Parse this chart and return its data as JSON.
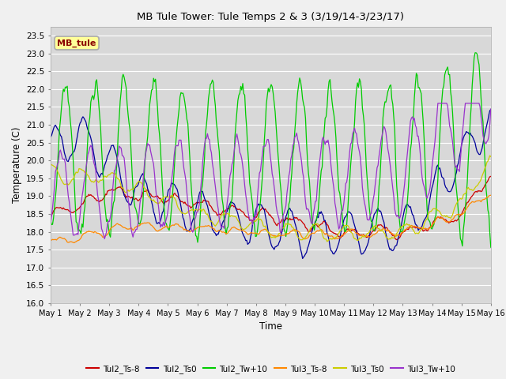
{
  "title": "MB Tule Tower: Tule Temps 2 & 3 (3/19/14-3/23/17)",
  "xlabel": "Time",
  "ylabel": "Temperature (C)",
  "ylim": [
    16.0,
    23.75
  ],
  "yticks": [
    16.0,
    16.5,
    17.0,
    17.5,
    18.0,
    18.5,
    19.0,
    19.5,
    20.0,
    20.5,
    21.0,
    21.5,
    22.0,
    22.5,
    23.0,
    23.5
  ],
  "legend_box_text": "MB_tule",
  "legend_box_color": "#ffff99",
  "legend_box_border": "#aaaaaa",
  "fig_bg_color": "#f0f0f0",
  "plot_bg_color": "#d8d8d8",
  "grid_color": "#ffffff",
  "colors": {
    "Tul2_Ts-8": "#cc0000",
    "Tul2_Ts0": "#000099",
    "Tul2_Tw+10": "#00cc00",
    "Tul3_Ts-8": "#ff8800",
    "Tul3_Ts0": "#cccc00",
    "Tul3_Tw+10": "#9933cc"
  },
  "n_days": 15,
  "n_points": 450
}
